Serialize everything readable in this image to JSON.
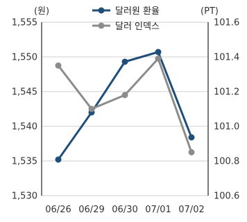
{
  "chart_data": {
    "type": "line",
    "categories": [
      "06/26",
      "06/29",
      "06/30",
      "07/01",
      "07/02"
    ],
    "left_unit": "(원)",
    "right_unit": "(PT)",
    "left_ylim": [
      1530,
      1555
    ],
    "left_ticks": [
      "1,530",
      "1,535",
      "1,540",
      "1,545",
      "1,550",
      "1,555"
    ],
    "left_tick_values": [
      1530,
      1535,
      1540,
      1545,
      1550,
      1555
    ],
    "right_ylim": [
      100.6,
      101.6
    ],
    "right_ticks": [
      "100.6",
      "100.8",
      "101.0",
      "101.2",
      "101.4",
      "101.6"
    ],
    "right_tick_values": [
      100.6,
      100.8,
      101.0,
      101.2,
      101.4,
      101.6
    ],
    "grid": "horizontal",
    "legend": "top-center",
    "series": [
      {
        "name": "달러원 환율",
        "axis": "left",
        "color": "#1f4e79",
        "values": [
          1535.2,
          1542.0,
          1549.3,
          1550.7,
          1538.4
        ]
      },
      {
        "name": "달러 인덱스",
        "axis": "right",
        "color": "#8c8c8c",
        "values": [
          101.35,
          101.1,
          101.18,
          101.39,
          100.85
        ]
      }
    ]
  }
}
